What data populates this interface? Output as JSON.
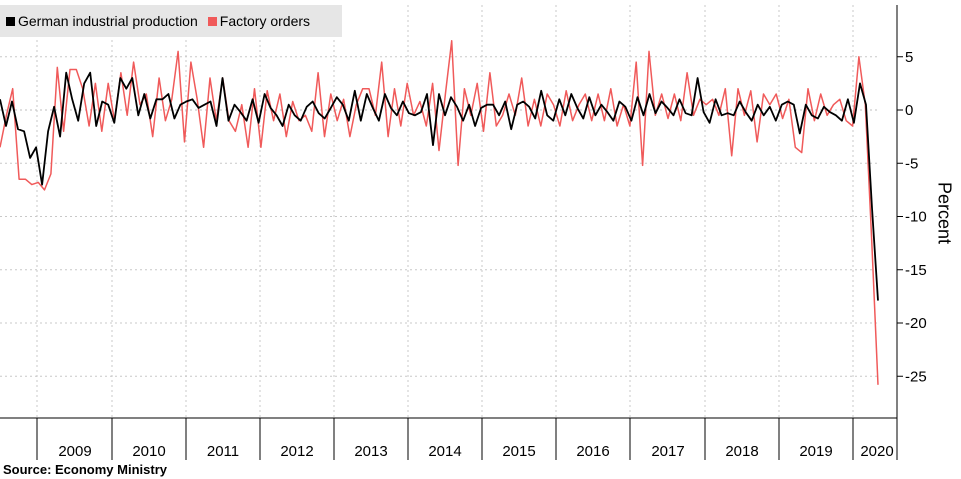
{
  "legend": {
    "items": [
      {
        "label": "German industrial production",
        "color": "#000000"
      },
      {
        "label": "Factory orders",
        "color": "#f05a5a"
      }
    ]
  },
  "source": "Source: Economy Ministry",
  "chart_data": {
    "type": "line",
    "title": "",
    "xlabel": "",
    "ylabel": "Percent",
    "ylim": [
      -28,
      10
    ],
    "yticks": [
      5,
      0,
      -5,
      -10,
      -15,
      -20,
      -25
    ],
    "grid": true,
    "legend_position": "top-left",
    "x_tick_labels": [
      "2009",
      "2010",
      "2011",
      "2012",
      "2013",
      "2014",
      "2015",
      "2016",
      "2017",
      "2018",
      "2019",
      "2020"
    ],
    "x_start": "2008-08",
    "x_end": "2020-04",
    "series": [
      {
        "name": "German industrial production",
        "color": "#000000",
        "values": [
          1.0,
          -1.5,
          0.8,
          -1.8,
          -2.0,
          -4.5,
          -3.5,
          -7.0,
          -2.0,
          0.3,
          -2.5,
          3.5,
          1.0,
          -1.0,
          2.5,
          3.5,
          -1.5,
          0.8,
          0.5,
          -1.2,
          3.0,
          2.0,
          3.0,
          -0.5,
          1.5,
          -0.8,
          1.0,
          1.0,
          1.5,
          -0.8,
          0.5,
          0.8,
          1.0,
          0.2,
          0.5,
          0.8,
          -1.5,
          3.0,
          -1.0,
          0.5,
          -0.2,
          -1.0,
          1.0,
          -1.2,
          1.5,
          0.2,
          -0.5,
          -1.5,
          0.5,
          -0.5,
          -1.0,
          0.3,
          0.8,
          -0.3,
          -0.8,
          0.2,
          1.2,
          0.5,
          -1.0,
          1.8,
          -1.0,
          1.5,
          0.2,
          -1.0,
          1.5,
          0.2,
          -0.5,
          0.8,
          -0.3,
          -0.5,
          -0.2,
          1.5,
          -3.3,
          1.5,
          -0.5,
          1.2,
          0.3,
          -1.0,
          0.5,
          -1.5,
          0.2,
          0.5,
          0.5,
          -0.5,
          0.8,
          -1.8,
          0.5,
          0.8,
          0.3,
          -0.8,
          1.8,
          -0.5,
          -1.0,
          1.0,
          -0.5,
          1.5,
          0.2,
          -0.8,
          1.2,
          -0.5,
          0.5,
          -0.2,
          -1.0,
          0.8,
          0.3,
          -1.0,
          1.2,
          -0.5,
          1.5,
          -0.3,
          0.8,
          0.2,
          -0.5,
          1.0,
          -0.3,
          -0.5,
          3.0,
          -0.2,
          -1.2,
          1.0,
          -0.5,
          -0.3,
          -0.5,
          0.8,
          -0.2,
          -1.0,
          0.5,
          -0.5,
          0.3,
          -1.0,
          0.5,
          0.8,
          0.5,
          -2.2,
          0.5,
          -0.5,
          -0.8,
          0.3,
          -0.2,
          -0.5,
          -1.0,
          1.0,
          -1.2,
          2.5,
          0.5,
          -9.2,
          -17.9
        ],
        "note_last_two": "final two values"
      },
      {
        "name": "Factory orders",
        "color": "#f05a5a",
        "values": [
          -3.5,
          -0.5,
          2.0,
          -6.5,
          -6.5,
          -7.0,
          -6.8,
          -7.5,
          -6.0,
          4.0,
          -2.0,
          3.8,
          3.8,
          2.0,
          -1.5,
          2.5,
          -2.0,
          2.5,
          -1.0,
          3.5,
          -0.5,
          4.5,
          0.5,
          1.5,
          -2.5,
          3.0,
          -1.0,
          1.0,
          5.5,
          -3.0,
          4.5,
          1.0,
          -3.5,
          3.0,
          -1.0,
          3.0,
          -1.0,
          -2.0,
          0.5,
          -3.5,
          2.0,
          -3.5,
          1.8,
          -1.0,
          1.5,
          -2.5,
          0.8,
          -1.0,
          -0.5,
          -2.0,
          3.5,
          -2.5,
          1.5,
          -1.0,
          1.0,
          -2.5,
          0.5,
          2.0,
          2.0,
          -0.5,
          4.5,
          -2.5,
          2.0,
          -1.5,
          2.5,
          -0.5,
          0.8,
          -1.5,
          2.5,
          -3.8,
          1.5,
          6.5,
          -5.2,
          2.0,
          -0.5,
          2.5,
          -2.0,
          3.5,
          -1.5,
          -0.5,
          1.5,
          -0.5,
          3.0,
          -1.5,
          1.0,
          -1.5,
          1.5,
          0.5,
          -1.5,
          1.8,
          -1.0,
          0.5,
          1.5,
          -1.0,
          1.5,
          -1.0,
          2.0,
          -1.5,
          0.5,
          -1.5,
          4.5,
          -5.2,
          5.5,
          -0.5,
          1.5,
          -0.8,
          1.5,
          -1.0,
          3.5,
          -0.5,
          1.0,
          0.5,
          1.0,
          -0.5,
          2.0,
          -4.3,
          2.0,
          -0.5,
          1.8,
          -3.0,
          1.5,
          0.5,
          1.5,
          -0.8,
          1.0,
          -3.5,
          -4.0,
          2.0,
          -1.0,
          1.5,
          -0.5,
          0.5,
          1.0,
          -1.0,
          -1.5,
          5.0,
          0.5,
          -12.0,
          -25.8
        ]
      }
    ]
  }
}
